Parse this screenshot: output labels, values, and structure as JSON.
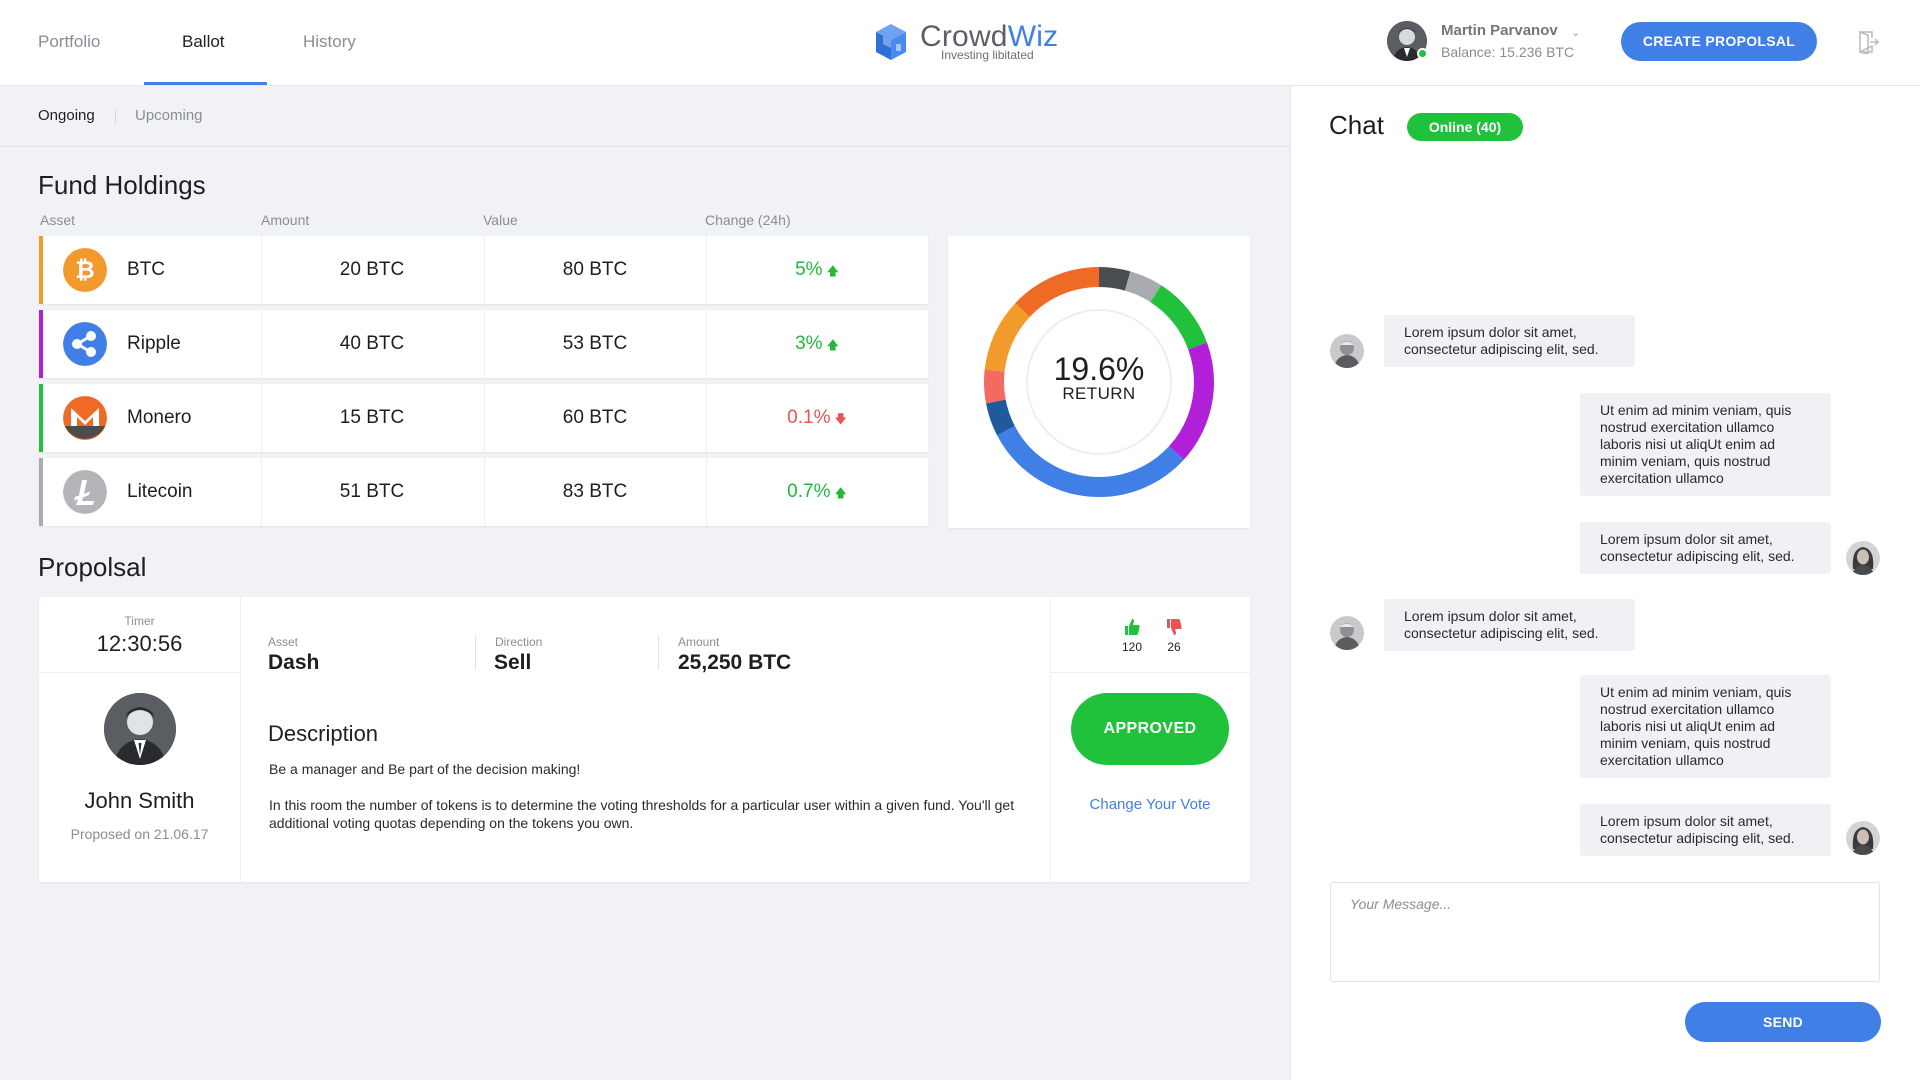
{
  "nav": {
    "tabs": [
      {
        "label": "Portfolio",
        "active": false
      },
      {
        "label": "Ballot",
        "active": true
      },
      {
        "label": "History",
        "active": false
      }
    ]
  },
  "logo": {
    "name_part1": "Crowd",
    "name_part2": "Wiz",
    "tagline": "Investing libitated",
    "icon": "cube-logo-icon"
  },
  "user": {
    "name": "Martin Parvanov",
    "balance": "Balance: 15.236 BTC",
    "status": "online"
  },
  "header": {
    "create_button": "CREATE PROPOLSAL",
    "logout_icon": "logout-icon"
  },
  "subtabs": [
    {
      "label": "Ongoing",
      "active": true
    },
    {
      "label": "Upcoming",
      "active": false
    }
  ],
  "holdings": {
    "title": "Fund Holdings",
    "columns": [
      "Asset",
      "Amount",
      "Value",
      "Change (24h)"
    ],
    "rows": [
      {
        "asset": "BTC",
        "amount": "20 BTC",
        "value": "80 BTC",
        "change": "5%",
        "direction": "up",
        "accent": "#f39a2c",
        "icon": "bitcoin-icon"
      },
      {
        "asset": "Ripple",
        "amount": "40 BTC",
        "value": "53 BTC",
        "change": "3%",
        "direction": "up",
        "accent": "#b21fd8",
        "icon": "ripple-icon"
      },
      {
        "asset": "Monero",
        "amount": "15 BTC",
        "value": "60 BTC",
        "change": "0.1%",
        "direction": "down",
        "accent": "#21c23b",
        "icon": "monero-icon"
      },
      {
        "asset": "Litecoin",
        "amount": "51 BTC",
        "value": "83 BTC",
        "change": "0.7%",
        "direction": "up",
        "accent": "#a9abb0",
        "icon": "litecoin-icon"
      }
    ]
  },
  "return_chart": {
    "value": "19.6%",
    "label": "RETURN",
    "segments": [
      {
        "color": "#4a4d52",
        "share": 0.044
      },
      {
        "color": "#a9abb0",
        "share": 0.047
      },
      {
        "color": "#21c23b",
        "share": 0.103
      },
      {
        "color": "#b21fd8",
        "share": 0.174
      },
      {
        "color": "#3f7fe6",
        "share": 0.305
      },
      {
        "color": "#1e5a9c",
        "share": 0.047
      },
      {
        "color": "#f26a62",
        "share": 0.047
      },
      {
        "color": "#f39a2c",
        "share": 0.103
      },
      {
        "color": "#ef6a25",
        "share": 0.13
      }
    ]
  },
  "proposal": {
    "title": "Propolsal",
    "timer_label": "Timer",
    "timer": "12:30:56",
    "proposer": "John Smith",
    "proposed_on": "Proposed on 21.06.17",
    "asset_label": "Asset",
    "asset": "Dash",
    "direction_label": "Direction",
    "direction": "Sell",
    "amount_label": "Amount",
    "amount": "25,250 BTC",
    "description_title": "Description",
    "description_line1": "Be a manager and Be part of the decision making!",
    "description_line2": "In this room the number of tokens is to determine the voting thresholds for a particular user within a given fund. You'll get additional voting quotas depending on the tokens you own.",
    "upvotes": "120",
    "downvotes": "26",
    "status_button": "APPROVED",
    "change_vote": "Change Your Vote",
    "colors": {
      "approve": "#21c23b",
      "downvote": "#e85353"
    }
  },
  "chat": {
    "title": "Chat",
    "online": "Online (40)",
    "messages": [
      {
        "side": "left",
        "text": "Lorem ipsum dolor sit amet, consectetur adipiscing elit, sed."
      },
      {
        "side": "right",
        "text": "Ut enim ad minim veniam, quis nostrud exercitation ullamco laboris nisi ut aliqUt enim ad minim veniam, quis nostrud exercitation ullamco"
      },
      {
        "side": "right",
        "text": "Lorem ipsum dolor sit amet, consectetur adipiscing elit, sed."
      },
      {
        "side": "left",
        "text": "Lorem ipsum dolor sit amet, consectetur adipiscing elit, sed."
      },
      {
        "side": "right",
        "text": "Ut enim ad minim veniam, quis nostrud exercitation ullamco laboris nisi ut aliqUt enim ad minim veniam, quis nostrud exercitation ullamco"
      },
      {
        "side": "right",
        "text": "Lorem ipsum dolor sit amet, consectetur adipiscing elit, sed."
      }
    ],
    "input_placeholder": "Your Message...",
    "send_button": "SEND"
  },
  "theme": {
    "accent": "#3f7fe6",
    "positive": "#25b73a",
    "negative": "#e85353"
  }
}
